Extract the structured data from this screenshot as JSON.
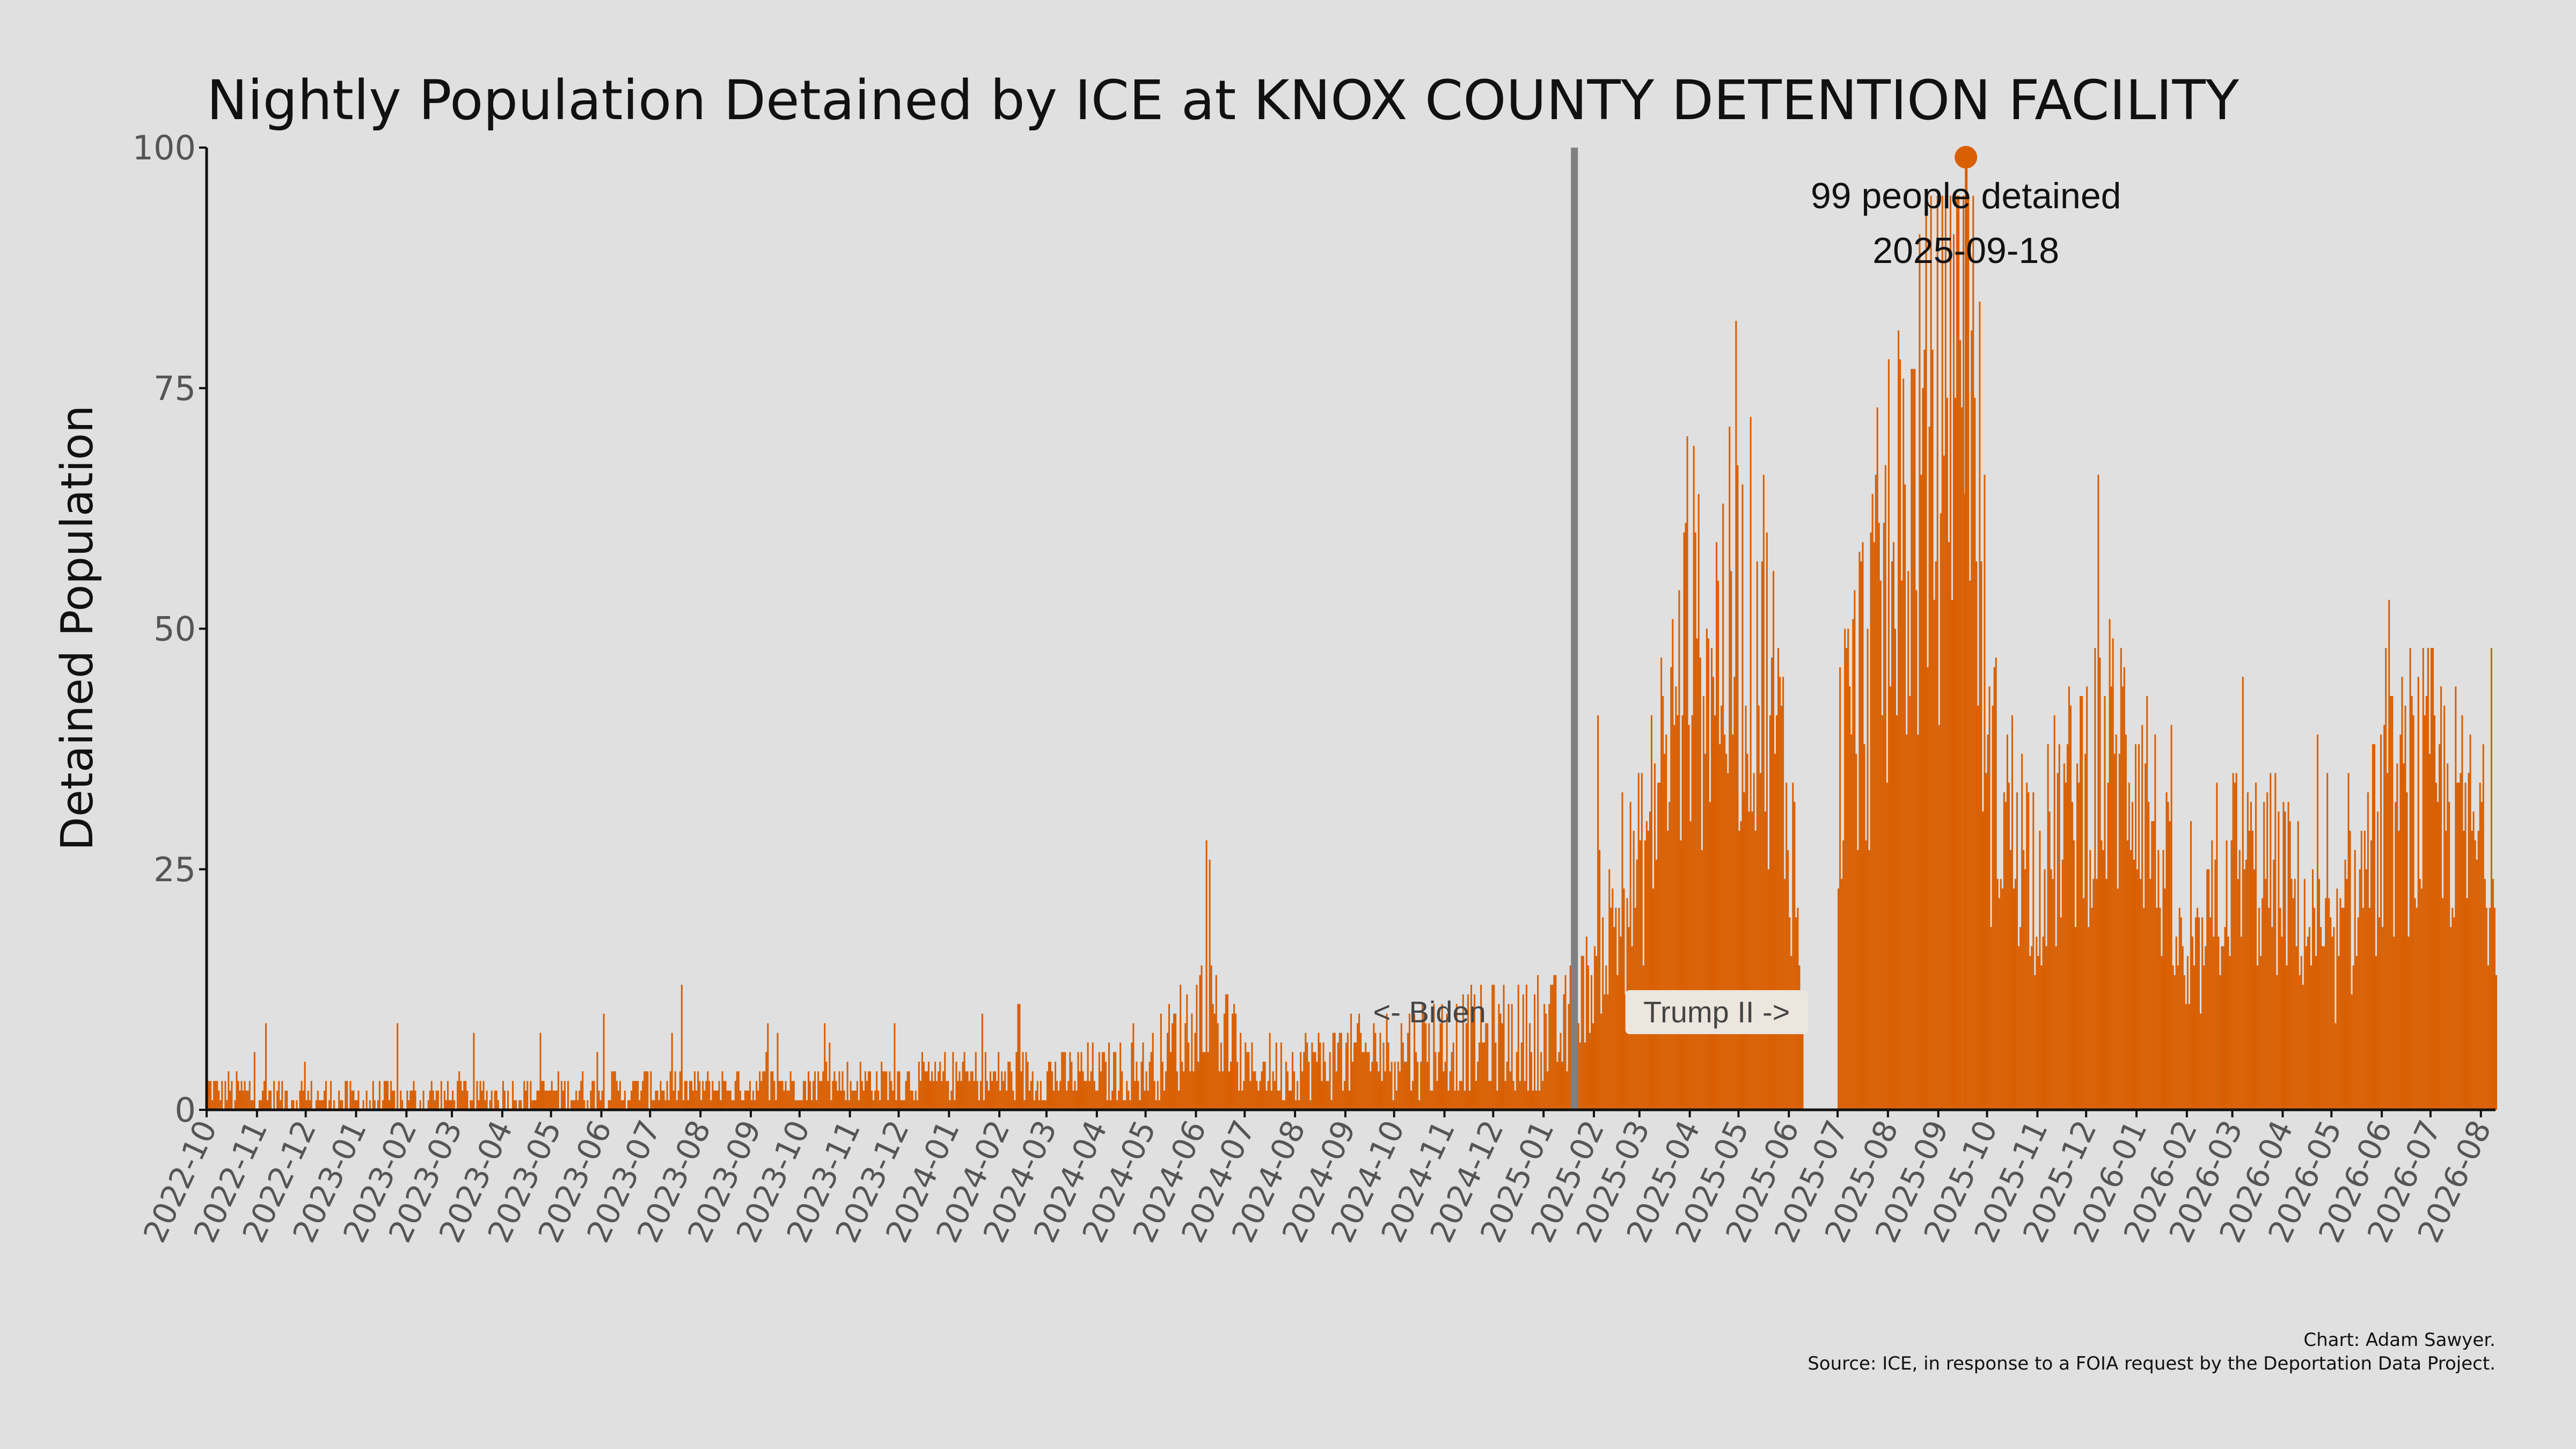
{
  "chart_data": {
    "type": "bar",
    "title": "Nightly Population Detained by ICE at KNOX COUNTY DETENTION FACILITY",
    "xlabel": "",
    "ylabel": "Detained Population",
    "ylim": [
      0,
      100
    ],
    "y_ticks": [
      "0",
      "25",
      "50",
      "75",
      "100"
    ],
    "x_tick_labels": [
      "2022-10",
      "2022-11",
      "2022-12",
      "2023-01",
      "2023-02",
      "2023-03",
      "2023-04",
      "2023-05",
      "2023-06",
      "2023-07",
      "2023-08",
      "2023-09",
      "2023-10",
      "2023-11",
      "2023-12",
      "2024-01",
      "2024-02",
      "2024-03",
      "2024-04",
      "2024-05",
      "2024-06",
      "2024-07",
      "2024-08",
      "2024-09",
      "2024-10",
      "2024-11",
      "2024-12",
      "2025-01",
      "2025-02",
      "2025-03",
      "2025-04",
      "2025-05",
      "2025-06",
      "2025-07",
      "2025-08",
      "2025-09",
      "2025-10",
      "2025-11",
      "2025-12",
      "2026-01",
      "2026-02",
      "2026-03",
      "2026-04",
      "2026-05",
      "2026-06",
      "2026-07",
      "2026-08"
    ],
    "x_range": [
      "2022-10-01",
      "2026-08-10"
    ],
    "grid": false,
    "bar_color": "#d95f02",
    "series_points": [
      {
        "date": "2022-10-01",
        "value": 2
      },
      {
        "date": "2023-01-01",
        "value": 1
      },
      {
        "date": "2023-06-01",
        "value": 2
      },
      {
        "date": "2023-12-01",
        "value": 3
      },
      {
        "date": "2024-05-01",
        "value": 4
      },
      {
        "date": "2024-06-10",
        "value": 11
      },
      {
        "date": "2024-07-01",
        "value": 4
      },
      {
        "date": "2024-11-01",
        "value": 7
      },
      {
        "date": "2025-01-15",
        "value": 8
      },
      {
        "date": "2025-02-01",
        "value": 15
      },
      {
        "date": "2025-03-01",
        "value": 25
      },
      {
        "date": "2025-04-01",
        "value": 48
      },
      {
        "date": "2025-05-15",
        "value": 50
      },
      {
        "date": "2025-06-05",
        "value": 25
      },
      {
        "date": "2025-06-10",
        "value": 0
      },
      {
        "date": "2025-06-30",
        "value": 0
      },
      {
        "date": "2025-07-01",
        "value": 35
      },
      {
        "date": "2025-08-01",
        "value": 55
      },
      {
        "date": "2025-09-01",
        "value": 72
      },
      {
        "date": "2025-09-18",
        "value": 99
      },
      {
        "date": "2025-10-01",
        "value": 35
      },
      {
        "date": "2025-11-01",
        "value": 25
      },
      {
        "date": "2025-12-01",
        "value": 35
      },
      {
        "date": "2026-01-01",
        "value": 38
      },
      {
        "date": "2026-02-01",
        "value": 12
      },
      {
        "date": "2026-03-01",
        "value": 26
      },
      {
        "date": "2026-04-01",
        "value": 24
      },
      {
        "date": "2026-05-01",
        "value": 15
      },
      {
        "date": "2026-06-01",
        "value": 30
      },
      {
        "date": "2026-07-01",
        "value": 34
      },
      {
        "date": "2026-08-10",
        "value": 25
      }
    ],
    "inauguration_date": "2025-01-20",
    "peak": {
      "date": "2025-09-18",
      "value": 99
    },
    "annotations": {
      "peak_line1": "99 people detained",
      "peak_line2": "2025-09-18",
      "left_era": "<- Biden",
      "right_era": "Trump II ->"
    }
  },
  "credits": {
    "line1": "Chart: Adam Sawyer.",
    "line2": "Source: ICE, in response to a FOIA request by the Deportation Data Project."
  }
}
